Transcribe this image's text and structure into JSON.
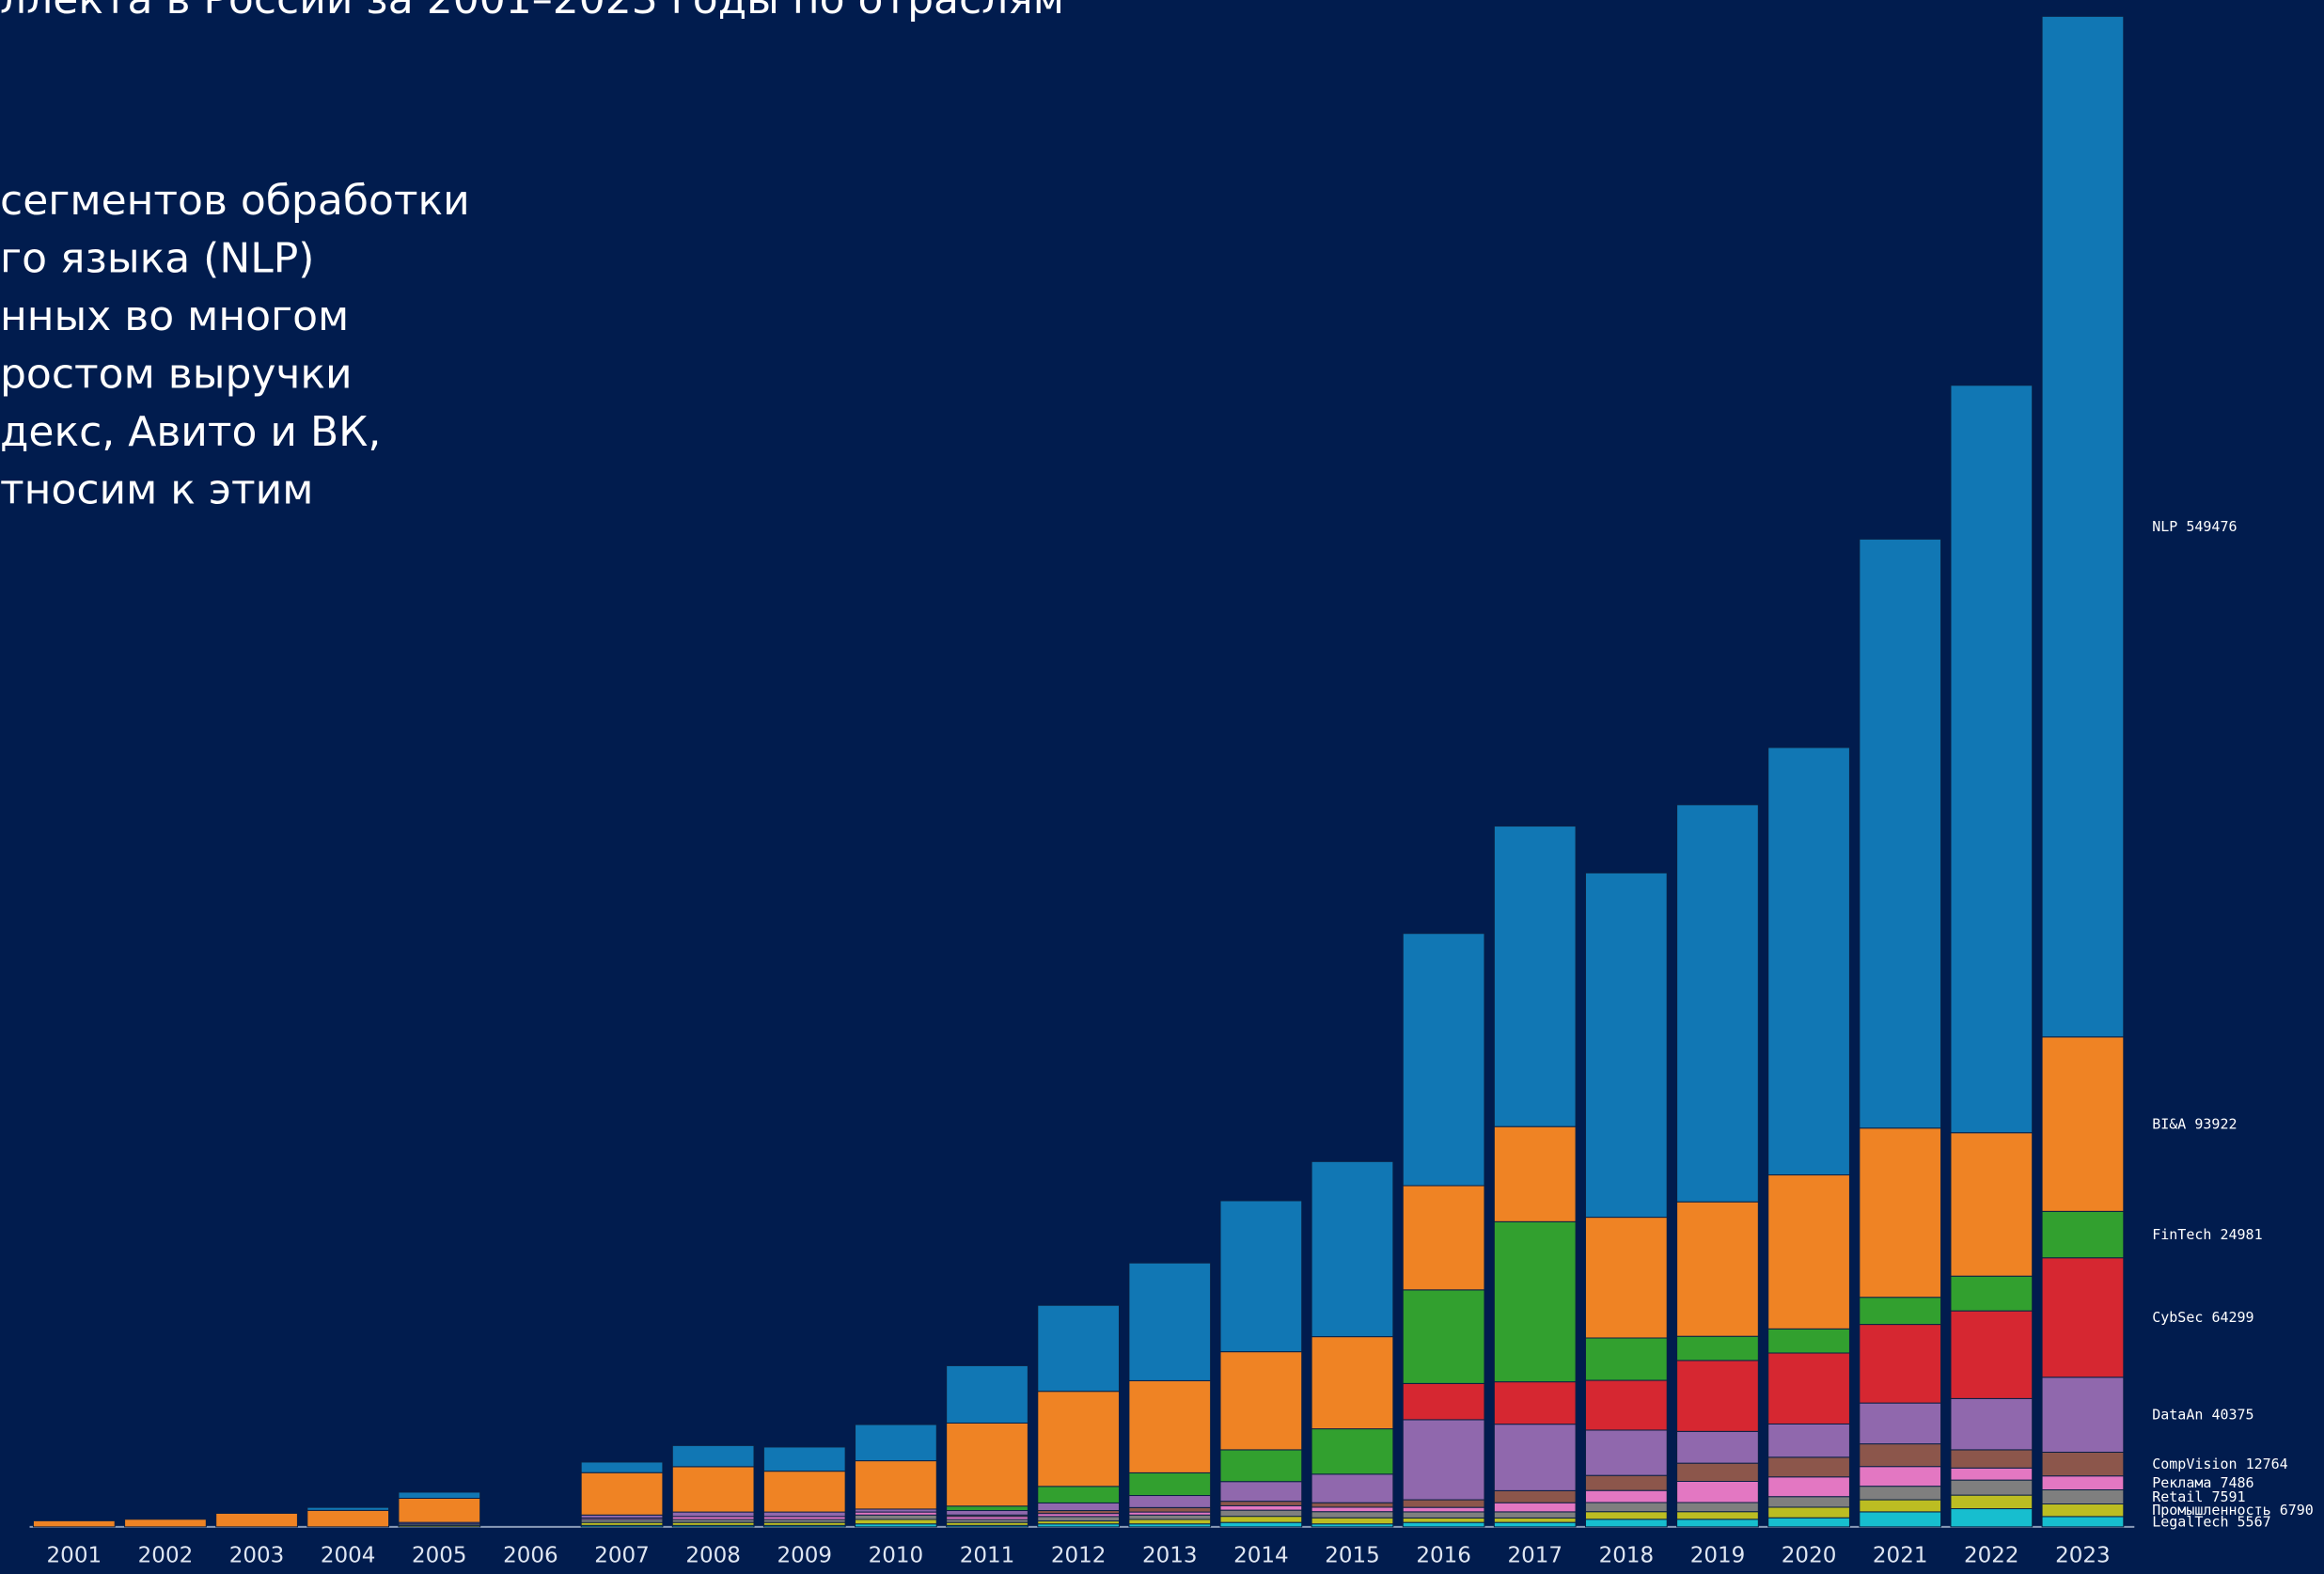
{
  "chart_data": {
    "type": "bar",
    "stacked": true,
    "title": "ллекта в России за 2001–2023 годы по отраслям",
    "annotation_lines": [
      "сегментов обработки",
      "го языка (NLP)",
      "нных во многом",
      "ростом выручки",
      "декс, Авито и ВК,",
      "тносим к этим"
    ],
    "categories": [
      "2001",
      "2002",
      "2003",
      "2004",
      "2005",
      "2006",
      "2007",
      "2008",
      "2009",
      "2010",
      "2011",
      "2012",
      "2013",
      "2014",
      "2015",
      "2016",
      "2017",
      "2018",
      "2019",
      "2020",
      "2021",
      "2022",
      "2023"
    ],
    "series": [
      {
        "name": "LegalTech",
        "color": "#17becf",
        "values": [
          0,
          0,
          0,
          0,
          0,
          0,
          800,
          800,
          800,
          1600,
          800,
          1600,
          1600,
          2400,
          1600,
          2400,
          2400,
          4100,
          4100,
          4900,
          8100,
          9800,
          5567
        ]
      },
      {
        "name": "Промышленность",
        "color": "#bcbd22",
        "values": [
          0,
          0,
          0,
          0,
          800,
          0,
          1600,
          1600,
          1600,
          2400,
          1600,
          1600,
          2400,
          3300,
          3300,
          2400,
          2400,
          4100,
          4100,
          5700,
          6500,
          7300,
          6790
        ]
      },
      {
        "name": "Retail",
        "color": "#7f7f7f",
        "values": [
          0,
          0,
          0,
          0,
          800,
          0,
          1600,
          1600,
          1600,
          2400,
          1600,
          2400,
          2400,
          3300,
          3300,
          3300,
          3300,
          4900,
          4900,
          5700,
          7300,
          8100,
          7591
        ]
      },
      {
        "name": "Реклама",
        "color": "#e377c2",
        "values": [
          0,
          0,
          0,
          0,
          0,
          0,
          800,
          1600,
          1600,
          1600,
          1600,
          1600,
          1600,
          2400,
          2400,
          2400,
          4900,
          6500,
          11400,
          10600,
          10600,
          6500,
          7486
        ]
      },
      {
        "name": "CompVision",
        "color": "#8c564b",
        "values": [
          0,
          0,
          0,
          0,
          0,
          0,
          0,
          0,
          0,
          0,
          800,
          1600,
          2400,
          2400,
          2400,
          4100,
          6500,
          8100,
          9800,
          10600,
          12200,
          9800,
          12764
        ]
      },
      {
        "name": "DataAn",
        "color": "#9068ad",
        "values": [
          0,
          0,
          0,
          0,
          800,
          0,
          1600,
          2400,
          2400,
          1600,
          2400,
          4100,
          6500,
          10600,
          15400,
          43100,
          35800,
          24400,
          17100,
          17900,
          22000,
          27600,
          40375
        ]
      },
      {
        "name": "CybSec",
        "color": "#d62731",
        "values": [
          0,
          0,
          0,
          0,
          0,
          0,
          0,
          0,
          0,
          0,
          0,
          0,
          0,
          0,
          0,
          19500,
          22800,
          26800,
          38200,
          38200,
          42300,
          47200,
          64299
        ]
      },
      {
        "name": "FinTech",
        "color": "#32a02f",
        "values": [
          0,
          0,
          0,
          0,
          0,
          0,
          0,
          0,
          0,
          0,
          2400,
          8900,
          12200,
          17100,
          24400,
          50400,
          86200,
          22800,
          13000,
          13000,
          14600,
          18700,
          24981
        ]
      },
      {
        "name": "BI&A",
        "color": "#ef8324",
        "values": [
          3300,
          4100,
          7300,
          8900,
          13000,
          0,
          22800,
          24400,
          22000,
          26000,
          44700,
          51200,
          49600,
          52800,
          49600,
          56100,
          51200,
          65000,
          72400,
          82900,
          91100,
          77200,
          93922
        ]
      },
      {
        "name": "NLP",
        "color": "#1177b4",
        "values": [
          0,
          0,
          0,
          1600,
          3300,
          0,
          5700,
          11400,
          13000,
          19500,
          30900,
          46300,
          63400,
          81300,
          94300,
          135800,
          161800,
          185400,
          213800,
          230100,
          317100,
          402400,
          549476
        ]
      }
    ]
  }
}
